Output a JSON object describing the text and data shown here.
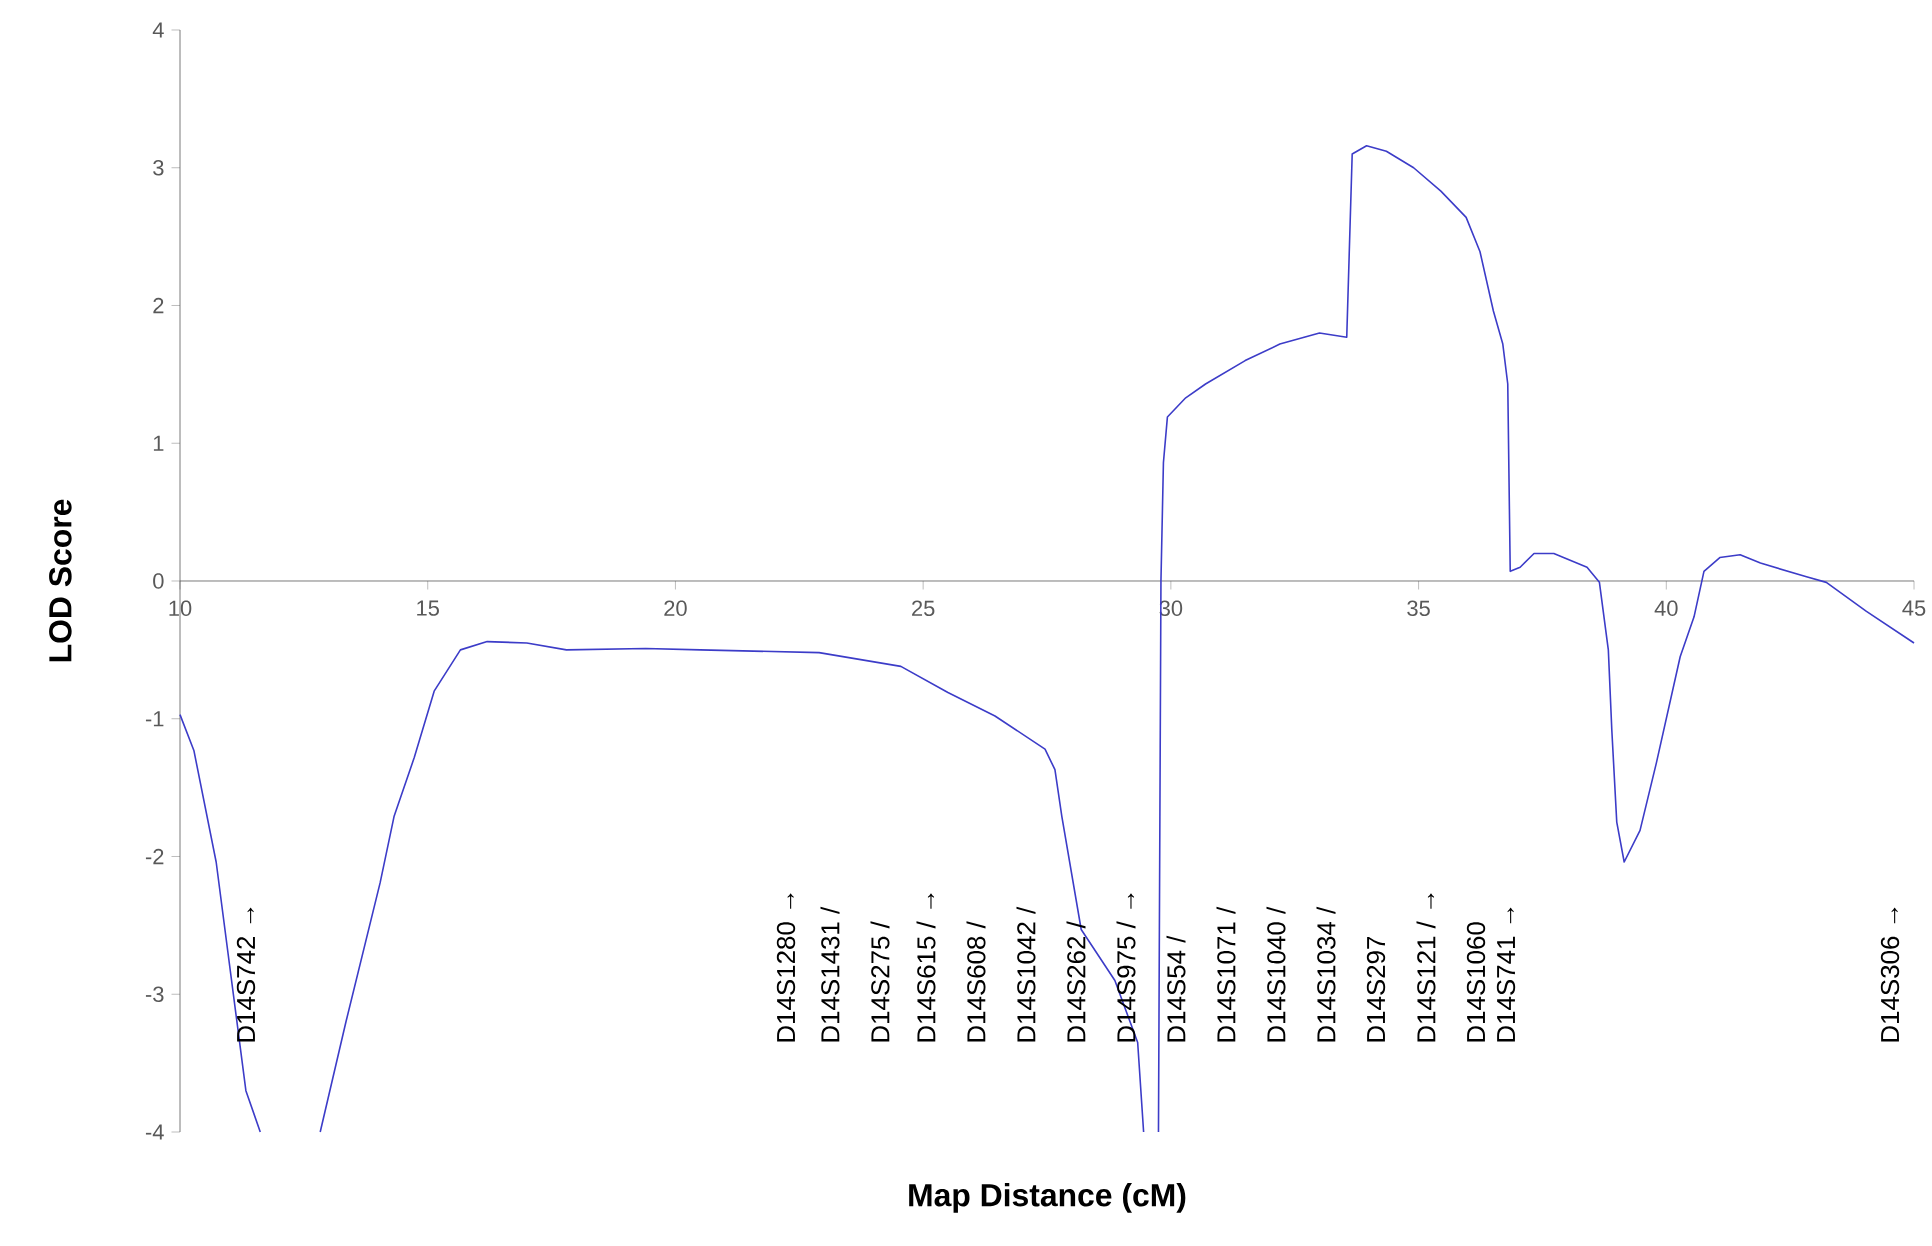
{
  "chart_data": {
    "type": "line",
    "xlabel": "Map Distance (cM)",
    "ylabel": "LOD Score",
    "x": [
      10,
      10.28,
      10.73,
      11.33,
      11.62,
      12.2,
      12.83,
      13.35,
      14.04,
      14.32,
      14.73,
      15.13,
      15.66,
      16.2,
      17.0,
      17.8,
      19.4,
      20.5,
      22.9,
      24.55,
      25.5,
      26.45,
      27.46,
      27.66,
      27.8,
      28.19,
      28.87,
      29.33,
      29.45,
      29.6,
      29.75,
      29.8,
      29.85,
      29.93,
      30.3,
      30.7,
      31.5,
      32.2,
      33.0,
      33.55,
      33.66,
      33.95,
      34.35,
      34.9,
      35.45,
      35.96,
      36.24,
      36.51,
      36.7,
      36.8,
      36.85,
      37.05,
      37.33,
      37.73,
      38.4,
      38.65,
      38.83,
      38.9,
      39.0,
      39.15,
      39.47,
      39.8,
      40.28,
      40.56,
      40.76,
      41.08,
      41.49,
      41.9,
      42.83,
      43.23,
      44.04,
      45
    ],
    "series": [
      {
        "color": "#3c3cc8",
        "values": [
          -0.97,
          -1.23,
          -2.04,
          -3.7,
          -4,
          null,
          -4,
          -3.2,
          -2.19,
          -1.71,
          -1.28,
          -0.8,
          -0.5,
          -0.44,
          -0.45,
          -0.5,
          -0.49,
          -0.5,
          -0.52,
          -0.62,
          -0.81,
          -0.98,
          -1.22,
          -1.37,
          -1.71,
          -2.53,
          -2.9,
          -3.35,
          -4,
          null,
          -4,
          0,
          0.86,
          1.19,
          1.33,
          1.43,
          1.6,
          1.72,
          1.8,
          1.77,
          3.1,
          3.16,
          3.12,
          3.0,
          2.83,
          2.64,
          2.39,
          1.96,
          1.72,
          1.43,
          0.07,
          0.1,
          0.2,
          0.2,
          0.1,
          -0.01,
          -0.5,
          -1.08,
          -1.75,
          -2.04,
          -1.81,
          -1.32,
          -0.55,
          -0.26,
          0.07,
          0.17,
          0.19,
          0.13,
          0.03,
          -0.01,
          -0.22,
          -0.45
        ]
      }
    ],
    "xlim": [
      10,
      45
    ],
    "ylim": [
      -4,
      4
    ],
    "xticks": [
      10,
      15,
      20,
      25,
      30,
      35,
      40,
      45
    ],
    "yticks": [
      -4,
      -3,
      -2,
      -1,
      0,
      1,
      2,
      3,
      4
    ],
    "annotations": [
      "D14S742 →",
      "D14S1280 →",
      "D14S1431 /",
      "D14S275 /",
      "D14S615 / →",
      "D14S608 /",
      "D14S1042 /",
      "D14S262 /",
      "D14S975 / →",
      "D14S54 /",
      "D14S1071 /",
      "D14S1040 /",
      "D14S1034 /",
      "D14S297",
      "D14S121 / →",
      "D14S1060",
      "D14S741 →",
      "D14S306 →"
    ]
  }
}
